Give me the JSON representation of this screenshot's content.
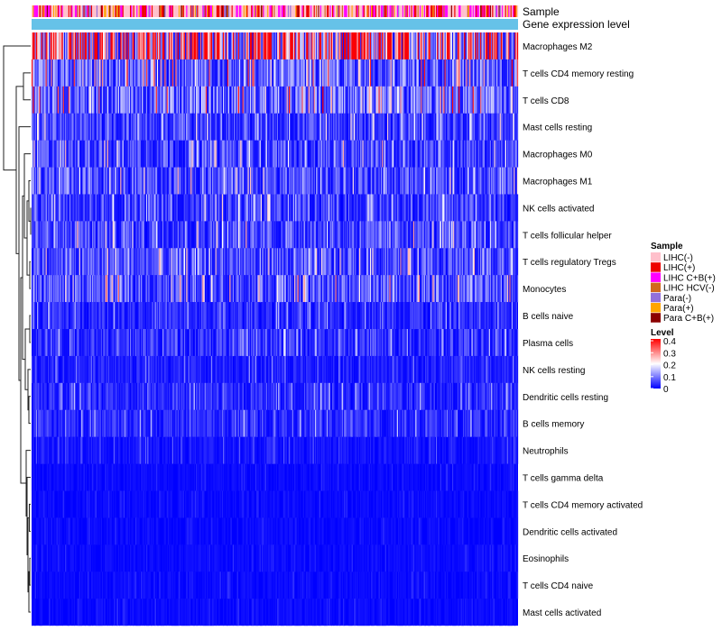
{
  "chart_data": {
    "type": "heatmap",
    "title": "",
    "annotation_tracks": [
      "Sample",
      "Gene expression level"
    ],
    "rows": [
      "Macrophages M2",
      "T cells CD4 memory resting",
      "T cells CD8",
      "Mast cells resting",
      "Macrophages M0",
      "Macrophages M1",
      "NK cells activated",
      "T cells follicular helper",
      "T cells regulatory  Tregs",
      "Monocytes",
      "B cells naive",
      "Plasma cells",
      "NK cells resting",
      "Dendritic cells resting",
      "B cells memory",
      "Neutrophils",
      "T cells gamma delta",
      "T cells CD4 memory activated",
      "Dendritic cells activated",
      "Eosinophils",
      "T cells CD4 naive",
      "Mast cells activated"
    ],
    "row_mean_levels": [
      0.3,
      0.1,
      0.1,
      0.06,
      0.07,
      0.07,
      0.06,
      0.07,
      0.07,
      0.08,
      0.04,
      0.05,
      0.03,
      0.04,
      0.04,
      0.02,
      0.01,
      0.01,
      0.01,
      0.01,
      0.01,
      0.01
    ],
    "n_samples": 450,
    "gene_expression_level_color": "#66c2e8",
    "legend": {
      "sample_title": "Sample",
      "sample_groups": [
        {
          "label": "LIHC(-)",
          "color": "#ffc0cb"
        },
        {
          "label": "LIHC(+)",
          "color": "#ee0000"
        },
        {
          "label": "LIHC C+B(+)",
          "color": "#ff00ff"
        },
        {
          "label": "LIHC HCV(-)",
          "color": "#d2691e"
        },
        {
          "label": "Para(-)",
          "color": "#9370db"
        },
        {
          "label": "Para(+)",
          "color": "#ffa500"
        },
        {
          "label": "Para C+B(+)",
          "color": "#8b0000"
        }
      ],
      "level_title": "Level",
      "level_ticks": [
        "0.4",
        "0.3",
        "0.2",
        "0.1",
        "0"
      ],
      "level_range": [
        0,
        0.4
      ],
      "level_colors": [
        "#0000ff",
        "#ffffff",
        "#ff0000"
      ]
    }
  }
}
